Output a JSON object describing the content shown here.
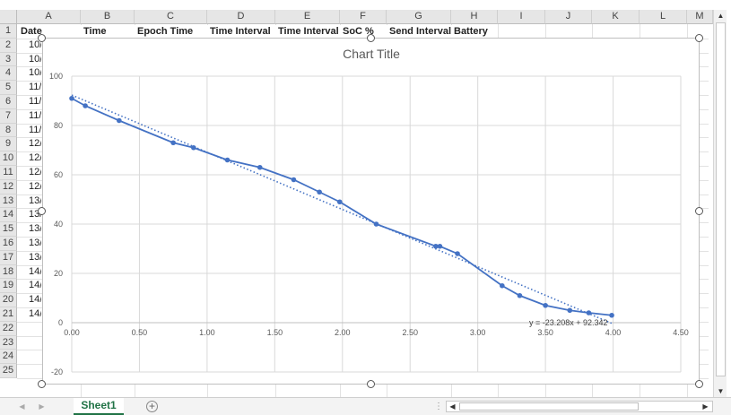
{
  "sheet": {
    "columns": [
      "A",
      "B",
      "C",
      "D",
      "E",
      "F",
      "G",
      "H",
      "I",
      "J",
      "K",
      "L",
      "M"
    ],
    "rows": [
      "1",
      "2",
      "3",
      "4",
      "5",
      "6",
      "7",
      "8",
      "9",
      "10",
      "11",
      "12",
      "13",
      "14",
      "15",
      "16",
      "17",
      "18",
      "19",
      "20",
      "21",
      "22",
      "23",
      "24",
      "25"
    ],
    "headers": [
      "Date",
      "Time",
      "Epoch Time",
      "Time Interval",
      "Time Interval",
      "SoC %",
      "Send Interval",
      "Battery"
    ],
    "col_a_values": [
      "10/",
      "10/",
      "10/",
      "11/",
      "11/",
      "11/",
      "11/",
      "12/",
      "12/",
      "12/",
      "12/",
      "13/",
      "13/",
      "13/",
      "13/",
      "13/",
      "14/",
      "14/",
      "14/",
      "14/"
    ],
    "tab_name": "Sheet1",
    "add_sheet": "+"
  },
  "chart_data": {
    "type": "scatter",
    "title": "Chart Title",
    "xlabel": "",
    "ylabel": "",
    "xlim": [
      0,
      4.5
    ],
    "ylim": [
      -20,
      100
    ],
    "x_ticks": [
      "0.00",
      "0.50",
      "1.00",
      "1.50",
      "2.00",
      "2.50",
      "3.00",
      "3.50",
      "4.00",
      "4.50"
    ],
    "y_ticks": [
      "100",
      "80",
      "60",
      "40",
      "20",
      "0",
      "-20"
    ],
    "grid": true,
    "series": [
      {
        "x": [
          0.0,
          0.1,
          0.35,
          0.75,
          0.9,
          1.15,
          1.39,
          1.64,
          1.83,
          1.98,
          2.25,
          2.69,
          2.72,
          2.85,
          3.18,
          3.31,
          3.5,
          3.68,
          3.82,
          3.99
        ],
        "y": [
          91,
          88,
          82,
          73,
          71,
          66,
          63,
          58,
          53,
          49,
          40,
          31,
          31,
          28,
          15,
          11,
          7,
          5,
          4,
          3
        ],
        "color": "#4472c4"
      }
    ],
    "trendline": {
      "type": "linear",
      "slope": -23.208,
      "intercept": 92.342,
      "label": "y = -23.208x + 92.342",
      "color": "#4472c4"
    }
  }
}
